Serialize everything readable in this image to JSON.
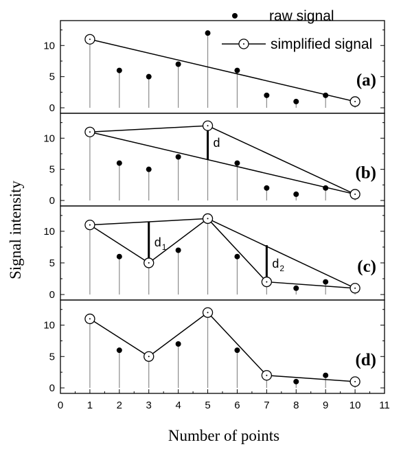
{
  "chart_data": {
    "type": "scatter",
    "layout": "4 stacked panels sharing x axis",
    "xlabel": "Number of points",
    "ylabel": "Signal intensity",
    "xlim": [
      0,
      11
    ],
    "ylim": [
      0,
      14
    ],
    "x_ticks": [
      0,
      1,
      2,
      3,
      4,
      5,
      6,
      7,
      8,
      9,
      10,
      11
    ],
    "y_ticks": [
      0,
      5,
      10
    ],
    "grid": false,
    "legend": {
      "placement": "top-right",
      "entries": [
        {
          "name": "raw signal",
          "marker": "filled-dot"
        },
        {
          "name": "simplified signal",
          "marker": "open-circle-line"
        }
      ]
    },
    "raw_signal": {
      "name": "raw signal",
      "x": [
        1,
        2,
        3,
        4,
        5,
        6,
        7,
        8,
        9,
        10
      ],
      "y": [
        11,
        6,
        5,
        7,
        12,
        6,
        2,
        1,
        2,
        1
      ]
    },
    "panels": [
      {
        "label": "(a)",
        "simplified_x": [
          1,
          10
        ],
        "segments": [],
        "annotations": []
      },
      {
        "label": "(b)",
        "simplified_x": [
          1,
          5,
          10
        ],
        "segments": [
          [
            1,
            10
          ]
        ],
        "annotations": [
          {
            "text": "d",
            "sub": "",
            "x": 5,
            "from": 6.5,
            "to": 12
          }
        ]
      },
      {
        "label": "(c)",
        "simplified_x": [
          1,
          3,
          5,
          7,
          10
        ],
        "segments": [
          [
            1,
            5
          ],
          [
            5,
            10
          ]
        ],
        "annotations": [
          {
            "text": "d",
            "sub": "1",
            "x": 3,
            "from": 5,
            "to": 11.5
          },
          {
            "text": "d",
            "sub": "2",
            "x": 7,
            "from": 2,
            "to": 7.8
          }
        ]
      },
      {
        "label": "(d)",
        "simplified_x": [
          1,
          3,
          5,
          7,
          10
        ],
        "segments": [],
        "annotations": []
      }
    ]
  }
}
